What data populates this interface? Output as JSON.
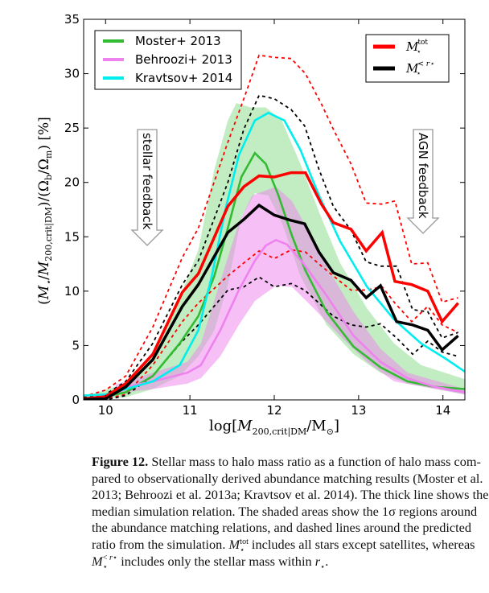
{
  "chart_data": {
    "type": "line",
    "xlabel": "log[M200,crit|DM/M⊙]",
    "ylabel": "(M⋆/M200,crit|DM)/(Ωb/Ωm) [%]",
    "xlim": [
      9.74,
      14.26
    ],
    "ylim": [
      0,
      35
    ],
    "xticks": [
      "10",
      "11",
      "12",
      "13",
      "14"
    ],
    "yticks": [
      "0",
      "5",
      "10",
      "15",
      "20",
      "25",
      "30",
      "35"
    ],
    "grid": false,
    "legends": [
      {
        "placement": "top-left",
        "entries": [
          "Moster+ 2013",
          "Behroozi+ 2013",
          "Kravtsov+ 2014"
        ]
      },
      {
        "placement": "top-right",
        "entries": [
          "M⋆tot",
          "M⋆<r⋆"
        ]
      }
    ],
    "annotations": [
      {
        "text": "stellar feedback",
        "arrow": "down"
      },
      {
        "text": "AGN feedback",
        "arrow": "down"
      }
    ],
    "series": [
      {
        "name": "Moster+ 2013",
        "color": "#33bb33",
        "style": "solid",
        "x": [
          9.74,
          10,
          10.24,
          10.56,
          10.88,
          11.1,
          11.29,
          11.45,
          11.61,
          11.77,
          11.9,
          12.05,
          12.21,
          12.37,
          12.62,
          12.94,
          13.26,
          13.58,
          13.9,
          14.26
        ],
        "y": [
          0.1,
          0.3,
          0.7,
          2.2,
          5.2,
          7.7,
          11.4,
          15.8,
          20.5,
          22.7,
          21.7,
          18.8,
          15.1,
          11.9,
          8.1,
          4.9,
          3.0,
          1.7,
          1.2,
          1.0
        ],
        "band": {
          "color": "#8fdc8f",
          "x_upper": [
            9.74,
            10.24,
            10.56,
            10.88,
            11.1,
            11.29,
            11.45,
            11.55,
            11.72,
            11.9,
            12.09,
            12.31,
            12.53,
            12.78,
            13.1,
            13.42,
            13.74,
            14.26
          ],
          "upper": [
            0.3,
            1.5,
            4.0,
            9.4,
            13.8,
            21.2,
            25.7,
            27.3,
            26.9,
            26.9,
            25.7,
            21.7,
            17.3,
            12.6,
            8.4,
            5.2,
            3.2,
            1.9
          ],
          "x_lower": [
            9.74,
            10.24,
            10.56,
            10.88,
            11.1,
            11.29,
            11.45,
            11.61,
            11.77,
            11.93,
            12.09,
            12.31,
            12.62,
            12.94,
            13.26,
            13.58,
            14.26
          ],
          "lower": [
            0,
            0.25,
            1.0,
            2.2,
            4.0,
            6.4,
            10.6,
            16.8,
            19.0,
            18.8,
            16.3,
            11.4,
            6.9,
            4.2,
            2.5,
            1.5,
            0.5
          ]
        }
      },
      {
        "name": "Behroozi+ 2013",
        "color": "#ee82ee",
        "style": "solid",
        "x": [
          10.12,
          10.56,
          10.97,
          11.13,
          11.36,
          11.58,
          11.77,
          11.9,
          12.02,
          12.15,
          12.34,
          12.62,
          12.94,
          13.26,
          13.58,
          13.9,
          14.26
        ],
        "y": [
          1.0,
          1.7,
          2.5,
          3.2,
          6.4,
          10.1,
          12.8,
          14.2,
          14.7,
          14.3,
          12.6,
          9.6,
          5.9,
          3.5,
          2.0,
          1.2,
          0.7
        ],
        "band": {
          "color": "#ee82ee",
          "x_upper": [
            10.12,
            10.56,
            10.97,
            11.13,
            11.36,
            11.58,
            11.74,
            12.02,
            12.21,
            12.4,
            12.62,
            12.94,
            13.26,
            13.58,
            14.26
          ],
          "upper": [
            1.4,
            2.5,
            3.5,
            5.2,
            10.9,
            16.3,
            18.8,
            19.6,
            18.3,
            15.6,
            12.3,
            8.1,
            4.7,
            2.5,
            1.0
          ],
          "x_lower": [
            10.12,
            10.56,
            10.97,
            11.13,
            11.36,
            11.58,
            11.77,
            12.02,
            12.21,
            12.47,
            12.78,
            13.1,
            13.42,
            14.26
          ],
          "lower": [
            0.6,
            1.0,
            1.5,
            2.0,
            4.0,
            6.9,
            9.1,
            10.5,
            10.4,
            8.4,
            5.9,
            3.5,
            1.7,
            0.5
          ]
        }
      },
      {
        "name": "Kravtsov+ 2014",
        "color": "#00eeee",
        "style": "solid",
        "x": [
          9.74,
          10,
          10.24,
          10.56,
          10.88,
          11.1,
          11.26,
          11.42,
          11.58,
          11.77,
          11.93,
          12.12,
          12.31,
          12.53,
          12.78,
          13.1,
          13.42,
          13.74,
          14.05,
          14.26
        ],
        "y": [
          0.4,
          0.5,
          1.0,
          1.7,
          3.2,
          6.4,
          11.4,
          17.5,
          22.5,
          25.7,
          26.4,
          25.7,
          23.0,
          18.8,
          14.6,
          10.4,
          7.4,
          5.2,
          3.7,
          2.6
        ]
      },
      {
        "name": "M⋆tot",
        "color": "#ff0000",
        "style": "solid",
        "x": [
          9.74,
          10,
          10.24,
          10.56,
          10.91,
          11.1,
          11.45,
          11.64,
          11.82,
          12.0,
          12.2,
          12.37,
          12.56,
          12.7,
          12.91,
          13.09,
          13.28,
          13.43,
          13.63,
          13.82,
          13.99,
          14.18
        ],
        "y": [
          0.1,
          0.3,
          1.5,
          4.2,
          9.9,
          11.6,
          17.8,
          19.6,
          20.6,
          20.5,
          20.9,
          20.9,
          18.0,
          16.3,
          15.7,
          13.7,
          15.4,
          10.9,
          10.6,
          10.0,
          7.2,
          8.9
        ],
        "dashed_upper": [
          0.3,
          0.9,
          2.2,
          6.7,
          13.1,
          15.8,
          23.7,
          27.7,
          31.7,
          31.5,
          31.4,
          30.0,
          27.2,
          24.9,
          21.7,
          18.1,
          18.0,
          18.3,
          12.5,
          12.6,
          9.0,
          9.4
        ],
        "dashed_lower": [
          0,
          0.1,
          0.5,
          3.2,
          7.2,
          8.9,
          11.4,
          12.6,
          13.7,
          13.0,
          13.8,
          13.6,
          12.3,
          11.4,
          10.1,
          10.1,
          10.4,
          8.9,
          7.2,
          8.6,
          6.9,
          6.2
        ]
      },
      {
        "name": "M⋆<r⋆",
        "color": "#000000",
        "style": "solid",
        "x": [
          9.74,
          10,
          10.24,
          10.56,
          10.91,
          11.1,
          11.45,
          11.64,
          11.82,
          12.0,
          12.2,
          12.36,
          12.53,
          12.7,
          12.91,
          13.09,
          13.26,
          13.45,
          13.64,
          13.82,
          13.99,
          14.18
        ],
        "y": [
          0.05,
          0.1,
          1.2,
          3.7,
          8.6,
          10.6,
          15.4,
          16.6,
          17.9,
          17.0,
          16.5,
          16.2,
          13.6,
          11.7,
          11.0,
          9.4,
          10.5,
          7.2,
          6.9,
          6.4,
          4.6,
          5.9
        ],
        "dashed_upper": [
          0.2,
          0.5,
          1.7,
          5.2,
          10.6,
          12.8,
          20.0,
          24.9,
          28.0,
          27.7,
          26.7,
          25.2,
          21.2,
          17.8,
          15.6,
          12.7,
          12.3,
          12.3,
          8.3,
          8.1,
          5.7,
          6.2
        ],
        "dashed_lower": [
          0,
          0,
          0.4,
          2.2,
          5.4,
          6.9,
          10.1,
          10.4,
          11.3,
          10.4,
          10.7,
          10.1,
          8.9,
          7.7,
          6.9,
          6.7,
          7.0,
          5.7,
          4.2,
          5.4,
          4.4,
          4.0
        ]
      }
    ]
  },
  "caption": {
    "label": "Figure 12.",
    "lines": [
      " Stellar mass to halo mass ratio as a function of halo mass com-",
      "pared to observationally derived abundance matching results (Moster et al.",
      "2013; Behroozi et al. 2013a; Kravtsov et al. 2014). The thick line shows the",
      "median simulation relation. The shaded areas show the 1σ regions around",
      "the abundance matching relations, and dashed lines around the predicted"
    ],
    "line6_a": "ratio from the simulation. ",
    "line6_b": " includes all stars except satellites, whereas",
    "line7_b": " includes only the stellar mass within ",
    "line7_c": "."
  }
}
